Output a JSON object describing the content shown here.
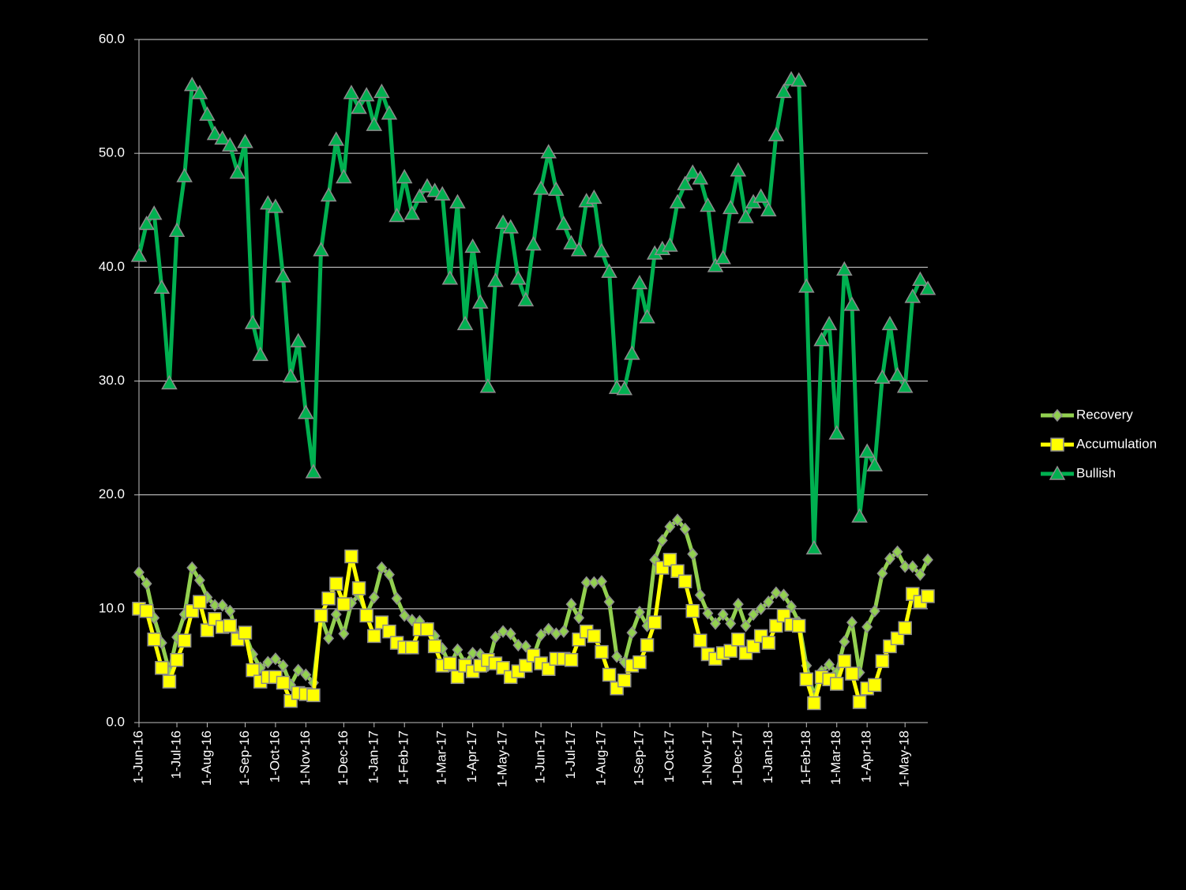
{
  "chart_data": {
    "type": "line",
    "categories": [
      "1-Jun-16",
      null,
      null,
      null,
      null,
      "1-Jul-16",
      null,
      null,
      null,
      "1-Aug-16",
      null,
      null,
      null,
      null,
      "1-Sep-16",
      null,
      null,
      null,
      "1-Oct-16",
      null,
      null,
      null,
      "1-Nov-16",
      null,
      null,
      null,
      null,
      "1-Dec-16",
      null,
      null,
      null,
      "1-Jan-17",
      null,
      null,
      null,
      "1-Feb-17",
      null,
      null,
      null,
      null,
      "1-Mar-17",
      null,
      null,
      null,
      "1-Apr-17",
      null,
      null,
      null,
      "1-May-17",
      null,
      null,
      null,
      null,
      "1-Jun-17",
      null,
      null,
      null,
      "1-Jul-17",
      null,
      null,
      null,
      "1-Aug-17",
      null,
      null,
      null,
      null,
      "1-Sep-17",
      null,
      null,
      null,
      "1-Oct-17",
      null,
      null,
      null,
      null,
      "1-Nov-17",
      null,
      null,
      null,
      "1-Dec-17",
      null,
      null,
      null,
      "1-Jan-18",
      null,
      null,
      null,
      null,
      "1-Feb-18",
      null,
      null,
      null,
      "1-Mar-18",
      null,
      null,
      null,
      "1-Apr-18",
      null,
      null,
      null,
      null,
      "1-May-18",
      null,
      null,
      null
    ],
    "series": [
      {
        "name": "Recovery",
        "color": "#92d050",
        "marker": "diamond",
        "values": [
          13.2,
          12.2,
          9.2,
          7.0,
          4.5,
          7.5,
          9.5,
          13.6,
          12.5,
          11.0,
          10.3,
          10.3,
          9.8,
          7.5,
          7.8,
          6.0,
          4.8,
          5.3,
          5.6,
          5.0,
          3.3,
          4.6,
          4.2,
          3.5,
          9.3,
          7.4,
          9.5,
          7.8,
          10.5,
          11.2,
          9.5,
          11.0,
          13.6,
          13.0,
          10.9,
          9.4,
          9.0,
          8.9,
          8.3,
          7.6,
          6.5,
          5.0,
          6.4,
          5.2,
          6.1,
          6.0,
          5.0,
          7.5,
          8.0,
          7.8,
          6.8,
          6.7,
          5.8,
          7.7,
          8.2,
          7.8,
          8.0,
          10.4,
          9.2,
          12.3,
          12.3,
          12.4,
          10.6,
          5.8,
          5.3,
          7.9,
          9.7,
          8.5,
          14.3,
          16.0,
          17.2,
          17.8,
          17.0,
          14.8,
          11.2,
          9.6,
          8.7,
          9.5,
          8.7,
          10.4,
          8.5,
          9.5,
          10.0,
          10.6,
          11.4,
          11.2,
          10.2,
          8.8,
          5.0,
          2.3,
          4.5,
          5.1,
          4.4,
          7.1,
          8.8,
          4.4,
          8.4,
          9.8,
          13.1,
          14.4,
          15.0,
          13.7,
          13.7,
          13.0,
          14.3
        ]
      },
      {
        "name": "Accumulation",
        "color": "#ffff00",
        "marker": "square",
        "values": [
          10.0,
          9.8,
          7.3,
          4.8,
          3.6,
          5.5,
          7.2,
          9.8,
          10.6,
          8.1,
          9.1,
          8.4,
          8.5,
          7.3,
          7.9,
          4.6,
          3.6,
          4.0,
          4.0,
          3.5,
          1.9,
          2.6,
          2.5,
          2.4,
          9.4,
          10.9,
          12.2,
          10.4,
          14.6,
          11.8,
          9.4,
          7.6,
          8.8,
          8.0,
          7.0,
          6.6,
          6.6,
          8.2,
          8.2,
          6.7,
          5.0,
          5.2,
          4.0,
          5.0,
          4.5,
          5.0,
          5.5,
          5.2,
          4.8,
          4.0,
          4.5,
          5.0,
          5.9,
          5.2,
          4.7,
          5.6,
          5.6,
          5.5,
          7.3,
          8.0,
          7.6,
          6.2,
          4.2,
          3.0,
          3.7,
          5.0,
          5.3,
          6.8,
          8.8,
          13.6,
          14.3,
          13.3,
          12.4,
          9.8,
          7.2,
          6.0,
          5.6,
          6.1,
          6.3,
          7.3,
          6.1,
          6.7,
          7.6,
          7.0,
          8.5,
          9.4,
          8.6,
          8.5,
          3.8,
          1.7,
          4.0,
          3.8,
          3.4,
          5.4,
          4.3,
          1.8,
          3.0,
          3.3,
          5.4,
          6.7,
          7.4,
          8.3,
          11.3,
          10.6,
          11.1
        ]
      },
      {
        "name": "Bullish",
        "color": "#00b050",
        "marker": "triangle",
        "values": [
          41.0,
          43.8,
          44.7,
          38.2,
          29.8,
          43.2,
          48.0,
          56.0,
          55.3,
          53.4,
          51.7,
          51.3,
          50.7,
          48.3,
          51.0,
          35.1,
          32.3,
          45.6,
          45.3,
          39.2,
          30.4,
          33.5,
          27.2,
          22.0,
          41.5,
          46.3,
          51.2,
          47.9,
          55.3,
          54.0,
          55.1,
          52.5,
          55.4,
          53.5,
          44.5,
          47.9,
          44.7,
          46.2,
          47.1,
          46.7,
          46.4,
          39.0,
          45.7,
          35.0,
          41.8,
          36.9,
          29.5,
          38.8,
          43.9,
          43.5,
          39.0,
          37.1,
          42.0,
          46.9,
          50.1,
          46.8,
          43.8,
          42.1,
          41.5,
          45.8,
          46.1,
          41.4,
          39.6,
          29.4,
          29.3,
          32.4,
          38.6,
          35.6,
          41.2,
          41.6,
          41.9,
          45.7,
          47.3,
          48.3,
          47.8,
          45.4,
          40.1,
          40.8,
          45.2,
          48.5,
          44.4,
          45.7,
          46.2,
          45.0,
          51.6,
          55.4,
          56.5,
          56.4,
          38.3,
          15.3,
          33.6,
          35.0,
          25.4,
          39.8,
          36.7,
          18.1,
          23.8,
          22.6,
          30.3,
          35.0,
          30.5,
          29.5,
          37.4,
          38.9,
          38.1
        ]
      }
    ],
    "ylim": [
      0,
      60
    ],
    "yticks": [
      {
        "value": 0,
        "label": "0.0"
      },
      {
        "value": 10,
        "label": "10.0"
      },
      {
        "value": 20,
        "label": "20.0"
      },
      {
        "value": 30,
        "label": "30.0"
      },
      {
        "value": 40,
        "label": "40.0"
      },
      {
        "value": 50,
        "label": "50.0"
      },
      {
        "value": 60,
        "label": "60.0"
      }
    ],
    "grid": true,
    "legend": "right"
  }
}
